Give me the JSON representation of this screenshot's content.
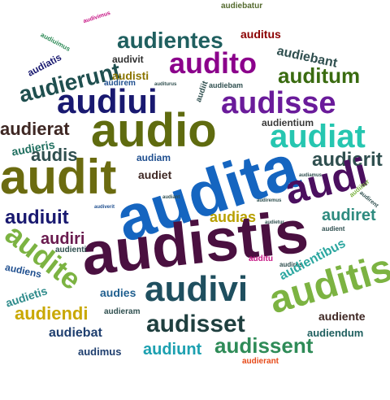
{
  "words": [
    {
      "text": "audiebatur",
      "color": "#556b2f"
    },
    {
      "text": "audivimus",
      "color": "#c71585"
    },
    {
      "text": "audiuimus",
      "color": "#2e8b57"
    },
    {
      "text": "audientes",
      "color": "#1f5f5f"
    },
    {
      "text": "auditus",
      "color": "#8b0000"
    },
    {
      "text": "audiatis",
      "color": "#191970"
    },
    {
      "text": "audivit",
      "color": "#2f2f2f"
    },
    {
      "text": "audito",
      "color": "#8b008b"
    },
    {
      "text": "audiebant",
      "color": "#2f4f4f"
    },
    {
      "text": "audierunt",
      "color": "#1f4f4f"
    },
    {
      "text": "audisti",
      "color": "#8b7500"
    },
    {
      "text": "auditum",
      "color": "#3a6b10"
    },
    {
      "text": "audirem",
      "color": "#1f4f8f"
    },
    {
      "text": "auditurus",
      "color": "#2f4f4f"
    },
    {
      "text": "audiit",
      "color": "#2f4f4f"
    },
    {
      "text": "audiebam",
      "color": "#2f4f4f"
    },
    {
      "text": "audiui",
      "color": "#191970"
    },
    {
      "text": "audisse",
      "color": "#6a1b9a"
    },
    {
      "text": "audio",
      "color": "#5f6b0f"
    },
    {
      "text": "audientium",
      "color": "#3a3a3a"
    },
    {
      "text": "audierat",
      "color": "#3e2723"
    },
    {
      "text": "audieris",
      "color": "#1f6f5f"
    },
    {
      "text": "audiat",
      "color": "#26c6b0"
    },
    {
      "text": "audis",
      "color": "#2f4f4f"
    },
    {
      "text": "audierit",
      "color": "#2f4f4f"
    },
    {
      "text": "audit",
      "color": "#6b6b10"
    },
    {
      "text": "audiam",
      "color": "#1f4f8f"
    },
    {
      "text": "audita",
      "color": "#1565c0"
    },
    {
      "text": "audiet",
      "color": "#3e2723"
    },
    {
      "text": "audi",
      "color": "#4b0f5f"
    },
    {
      "text": "audiuit",
      "color": "#191970"
    },
    {
      "text": "audias",
      "color": "#b8a000"
    },
    {
      "text": "audiret",
      "color": "#2e8b7f"
    },
    {
      "text": "audite",
      "color": "#7cb342"
    },
    {
      "text": "audiri",
      "color": "#6a1b4f"
    },
    {
      "text": "audistis",
      "color": "#4a1040"
    },
    {
      "text": "audienti",
      "color": "#2f4f4f"
    },
    {
      "text": "audient",
      "color": "#2f4f4f"
    },
    {
      "text": "audiens",
      "color": "#1f4f8f"
    },
    {
      "text": "auditu",
      "color": "#c71585"
    },
    {
      "text": "audires",
      "color": "#2f4f4f"
    },
    {
      "text": "audientibus",
      "color": "#2ca7a0"
    },
    {
      "text": "audietis",
      "color": "#2e8b8b"
    },
    {
      "text": "audivi",
      "color": "#1f4f5f"
    },
    {
      "text": "auditis",
      "color": "#7cb342"
    },
    {
      "text": "audiendi",
      "color": "#c9a800"
    },
    {
      "text": "audies",
      "color": "#1f5f8f"
    },
    {
      "text": "audieram",
      "color": "#2f4f4f"
    },
    {
      "text": "audiente",
      "color": "#3e2723"
    },
    {
      "text": "audiebat",
      "color": "#1f3f6f"
    },
    {
      "text": "audisset",
      "color": "#1f3f3f"
    },
    {
      "text": "audiendum",
      "color": "#1f5f5f"
    },
    {
      "text": "audimus",
      "color": "#1f3f6f"
    },
    {
      "text": "audiunt",
      "color": "#1ca0b0"
    },
    {
      "text": "audissent",
      "color": "#2e8b57"
    },
    {
      "text": "audierant",
      "color": "#e64a19"
    },
    {
      "text": "audirent",
      "color": "#2f4f4f"
    },
    {
      "text": "audiverit",
      "color": "#1f4f8f"
    },
    {
      "text": "audiitur",
      "color": "#7cb342"
    },
    {
      "text": "audiamus",
      "color": "#2f4f4f"
    },
    {
      "text": "audiremus",
      "color": "#2f4f4f"
    },
    {
      "text": "audiant",
      "color": "#2f4f4f"
    },
    {
      "text": "audietur",
      "color": "#2f4f4f"
    }
  ]
}
